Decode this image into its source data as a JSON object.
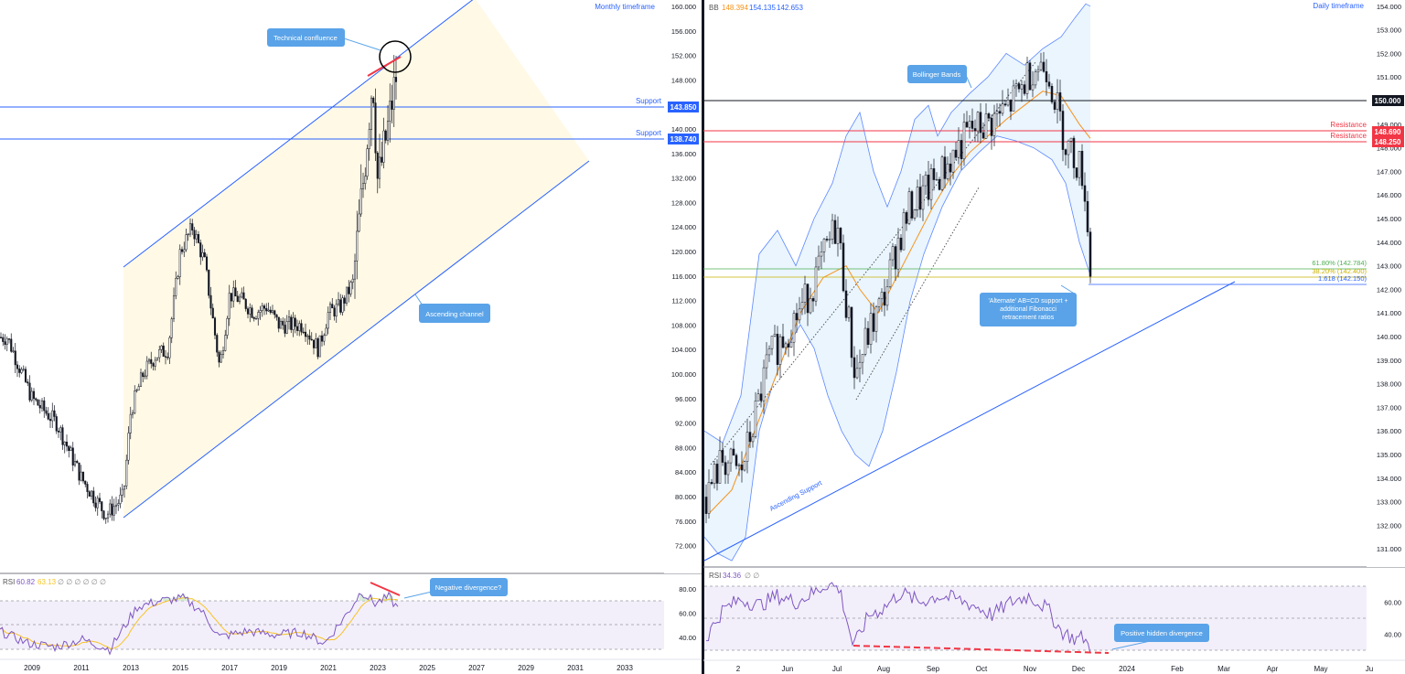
{
  "left_panel": {
    "timeframe": "Monthly timeframe",
    "axis_ticks": [
      "160.000",
      "156.000",
      "152.000",
      "148.000",
      "144.000",
      "140.000",
      "136.000",
      "132.000",
      "128.000",
      "124.000",
      "120.000",
      "116.000",
      "112.000",
      "108.000",
      "104.000",
      "100.000",
      "96.000",
      "92.000",
      "88.000",
      "84.000",
      "80.000",
      "76.000",
      "72.000"
    ],
    "time_ticks": [
      "2009",
      "2011",
      "2013",
      "2015",
      "2017",
      "2019",
      "2021",
      "2023",
      "2025",
      "2027",
      "2029",
      "2031",
      "2033"
    ],
    "support_label_1": "Support",
    "support_label_2": "Support",
    "support_price_1": "143.850",
    "support_price_2": "138.740",
    "callout_confluence": "Technical confluence",
    "callout_channel": "Ascending channel",
    "callout_divergence": "Negative divergence?",
    "rsi_label": "RSI",
    "rsi_value": "60.82",
    "rsi_ma": "63.13",
    "rsi_extra": "∅ ∅ ∅ ∅ ∅ ∅",
    "rsi_ticks": [
      "80.00",
      "60.00",
      "40.00"
    ]
  },
  "right_panel": {
    "timeframe": "Daily timeframe",
    "bb_label": "BB",
    "bb_mid": "148.394",
    "bb_upper": "154.135",
    "bb_lower": "142.653",
    "axis_ticks": [
      "154.000",
      "153.000",
      "152.000",
      "151.000",
      "150.000",
      "149.000",
      "148.000",
      "147.000",
      "146.000",
      "145.000",
      "144.000",
      "143.000",
      "142.000",
      "141.000",
      "140.000",
      "139.000",
      "138.000",
      "137.000",
      "136.000",
      "135.000",
      "134.000",
      "133.000",
      "132.000",
      "131.000"
    ],
    "time_ticks": [
      "2",
      "Jun",
      "Jul",
      "Aug",
      "Sep",
      "Oct",
      "Nov",
      "Dec",
      "2024",
      "Feb",
      "Mar",
      "Apr",
      "May",
      "Ju"
    ],
    "price_150": "150.000",
    "resistance_label_1": "Resistance",
    "resistance_label_2": "Resistance",
    "resistance_price_1": "148.690",
    "resistance_price_2": "148.250",
    "fib_618": "61.80% (142.784)",
    "fib_382": "38.20% (142.400)",
    "fib_1618": "1.618 (142.150)",
    "callout_bb": "Bollinger Bands",
    "callout_abcd": [
      "'Alternate' AB=CD support +",
      "additional Fibonacci",
      "retracement ratios"
    ],
    "ascending_support": "Ascending Support",
    "callout_hidden_div": "Positive hidden divergence",
    "rsi_label": "RSI",
    "rsi_value": "34.36",
    "rsi_extra": "∅ ∅",
    "rsi_ticks": [
      "60.00",
      "40.00"
    ]
  },
  "colors": {
    "accent_blue": "#2962ff",
    "callout_blue": "#5aa3e8",
    "bb_orange": "#f7931a",
    "red": "#f23645",
    "green_fib": "#4caf50",
    "yellow_fib": "#c9b300",
    "channel_fill": "#fff9e6",
    "rsi_fill": "#f3effa"
  },
  "chart_data": [
    {
      "type": "candlestick",
      "title": "Monthly timeframe",
      "x_range": [
        "2008",
        "2034"
      ],
      "ylim": [
        70,
        161
      ],
      "series": [
        {
          "values": [
            [
              2008.0,
              106
            ],
            [
              2009.0,
              96
            ],
            [
              2010.0,
              92
            ],
            [
              2011.0,
              83
            ],
            [
              2012.0,
              77
            ],
            [
              2012.7,
              80
            ],
            [
              2013.0,
              94
            ],
            [
              2013.5,
              100
            ],
            [
              2014.0,
              103
            ],
            [
              2014.5,
              104
            ],
            [
              2015.0,
              120
            ],
            [
              2015.5,
              124
            ],
            [
              2016.0,
              118
            ],
            [
              2016.6,
              101
            ],
            [
              2017.0,
              113
            ],
            [
              2017.5,
              112
            ],
            [
              2018.0,
              110
            ],
            [
              2018.5,
              111
            ],
            [
              2019.0,
              108
            ],
            [
              2019.5,
              108
            ],
            [
              2020.0,
              108
            ],
            [
              2020.6,
              104
            ],
            [
              2021.0,
              110
            ],
            [
              2021.5,
              111
            ],
            [
              2022.0,
              115
            ],
            [
              2022.4,
              131
            ],
            [
              2022.8,
              149
            ],
            [
              2023.0,
              131
            ],
            [
              2023.4,
              140
            ],
            [
              2023.8,
              150
            ],
            [
              2024.0,
              144
            ]
          ]
        }
      ],
      "annotations": [
        "Support 143.850",
        "Support 138.740",
        "Technical confluence",
        "Ascending channel"
      ],
      "rsi": {
        "value": 60.82,
        "ma": 63.13,
        "ylim": [
          25,
          90
        ],
        "levels": [
          70,
          50,
          30
        ]
      }
    },
    {
      "type": "candlestick",
      "title": "Daily timeframe",
      "x_range": [
        "May 2023",
        "Jun 2024"
      ],
      "ylim": [
        130.5,
        154.3
      ],
      "bollinger": {
        "basis": 148.394,
        "upper": 154.135,
        "lower": 142.653
      },
      "series": [
        {
          "values": [
            [
              "May",
              133.5
            ],
            [
              "May",
              135.0
            ],
            [
              "Jun",
              138.5
            ],
            [
              "Jun",
              140.0
            ],
            [
              "Jun",
              141.5
            ],
            [
              "Jul",
              144.5
            ],
            [
              "Jul",
              141.5
            ],
            [
              "Jul",
              138.0
            ],
            [
              "Aug",
              141.5
            ],
            [
              "Aug",
              143.5
            ],
            [
              "Aug",
              145.5
            ],
            [
              "Sep",
              147.0
            ],
            [
              "Sep",
              147.5
            ],
            [
              "Oct",
              148.5
            ],
            [
              "Oct",
              149.5
            ],
            [
              "Nov",
              151.5
            ],
            [
              "Nov",
              151.0
            ],
            [
              "Nov",
              149.5
            ],
            [
              "Dec",
              147.0
            ],
            [
              "Dec",
              141.8
            ]
          ]
        }
      ],
      "levels": {
        "150.000": 150.0,
        "Resistance 1": 148.69,
        "Resistance 2": 148.25,
        "fib_618": 142.784,
        "fib_382": 142.4,
        "fib_1618": 142.15
      },
      "annotations": [
        "Bollinger Bands",
        "'Alternate' AB=CD support + additional Fibonacci retracement ratios",
        "Ascending Support",
        "Positive hidden divergence"
      ],
      "rsi": {
        "value": 34.36,
        "ylim": [
          25,
          82
        ],
        "levels": [
          70,
          50,
          30
        ]
      }
    }
  ]
}
